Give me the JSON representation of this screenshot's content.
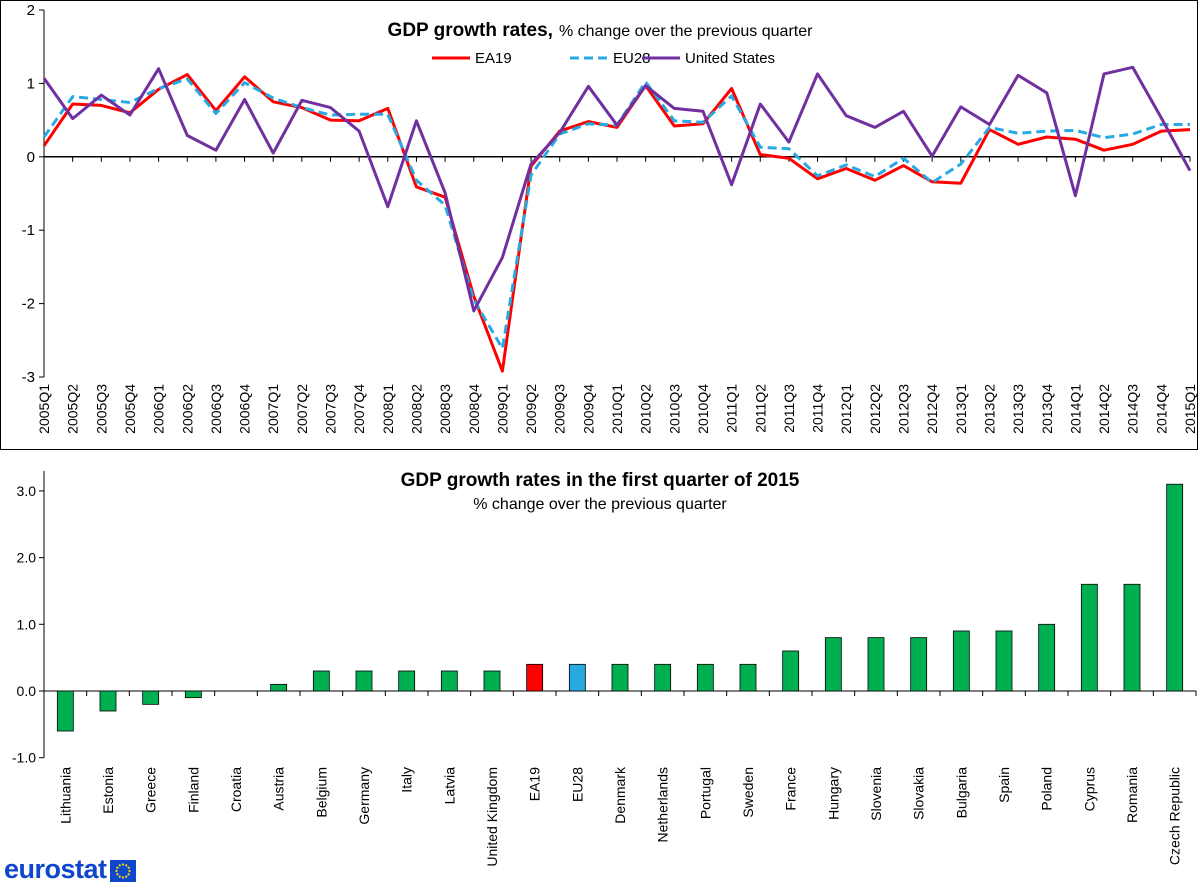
{
  "brand": {
    "name": "eurostat",
    "flag_color": "#0E47CB",
    "star_color": "#FFDD00"
  },
  "chart_data": [
    {
      "type": "line",
      "title": "GDP growth rates,",
      "subtitle": "% change over the previous quarter",
      "xlabel": "",
      "ylabel": "",
      "ylim": [
        -3,
        2
      ],
      "yticks": [
        "2",
        "1",
        "0",
        "-1",
        "-2",
        "-3"
      ],
      "grid": false,
      "legend_position": "top",
      "x": [
        "2005Q1",
        "2005Q2",
        "2005Q3",
        "2005Q4",
        "2006Q1",
        "2006Q2",
        "2006Q3",
        "2006Q4",
        "2007Q1",
        "2007Q2",
        "2007Q3",
        "2007Q4",
        "2008Q1",
        "2008Q2",
        "2008Q3",
        "2008Q4",
        "2009Q1",
        "2009Q2",
        "2009Q3",
        "2009Q4",
        "2010Q1",
        "2010Q2",
        "2010Q3",
        "2010Q4",
        "2011Q1",
        "2011Q2",
        "2011Q3",
        "2011Q4",
        "2012Q1",
        "2012Q2",
        "2012Q3",
        "2012Q4",
        "2013Q1",
        "2013Q2",
        "2013Q3",
        "2013Q4",
        "2014Q1",
        "2014Q2",
        "2014Q3",
        "2014Q4",
        "2015Q1"
      ],
      "series": [
        {
          "name": "EA19",
          "color": "#FF0000",
          "style": "solid",
          "values": [
            0.15,
            0.72,
            0.7,
            0.6,
            0.92,
            1.12,
            0.63,
            1.09,
            0.75,
            0.67,
            0.5,
            0.49,
            0.66,
            -0.41,
            -0.55,
            -1.9,
            -2.92,
            -0.13,
            0.35,
            0.48,
            0.4,
            0.97,
            0.42,
            0.45,
            0.93,
            0.03,
            -0.02,
            -0.3,
            -0.16,
            -0.32,
            -0.12,
            -0.34,
            -0.36,
            0.37,
            0.17,
            0.27,
            0.24,
            0.09,
            0.17,
            0.35,
            0.37
          ]
        },
        {
          "name": "EU28",
          "color": "#27AAE1",
          "style": "dashed",
          "values": [
            0.27,
            0.82,
            0.78,
            0.74,
            0.93,
            1.06,
            0.59,
            1.01,
            0.8,
            0.67,
            0.57,
            0.58,
            0.58,
            -0.32,
            -0.66,
            -1.95,
            -2.61,
            -0.25,
            0.31,
            0.45,
            0.43,
            1.02,
            0.49,
            0.47,
            0.83,
            0.13,
            0.11,
            -0.26,
            -0.11,
            -0.27,
            -0.02,
            -0.35,
            -0.1,
            0.4,
            0.32,
            0.35,
            0.36,
            0.26,
            0.31,
            0.44,
            0.44
          ]
        },
        {
          "name": "United States",
          "color": "#7030A0",
          "style": "solid",
          "values": [
            1.07,
            0.52,
            0.84,
            0.57,
            1.2,
            0.29,
            0.09,
            0.78,
            0.05,
            0.77,
            0.67,
            0.35,
            -0.68,
            0.49,
            -0.49,
            -2.1,
            -1.37,
            -0.1,
            0.33,
            0.96,
            0.43,
            0.97,
            0.66,
            0.62,
            -0.38,
            0.72,
            0.2,
            1.13,
            0.56,
            0.4,
            0.62,
            0.01,
            0.68,
            0.44,
            1.11,
            0.87,
            -0.53,
            1.13,
            1.22,
            0.53,
            -0.19
          ]
        }
      ]
    },
    {
      "type": "bar",
      "title": "GDP growth rates in the first quarter of 2015",
      "subtitle": "% change over the previous quarter",
      "xlabel": "",
      "ylabel": "",
      "ylim": [
        -1,
        3.3
      ],
      "yticks": [
        "3.0",
        "2.0",
        "1.0",
        "0.0",
        "-1.0"
      ],
      "grid": false,
      "bar_colors": {
        "default": "#00B050",
        "EA19": "#FF0000",
        "EU28": "#27AAE1"
      },
      "categories": [
        "Lithuania",
        "Estonia",
        "Greece",
        "Finland",
        "Croatia",
        "Austria",
        "Belgium",
        "Germany",
        "Italy",
        "Latvia",
        "United Kingdom",
        "EA19",
        "EU28",
        "Denmark",
        "Netherlands",
        "Portugal",
        "Sweden",
        "France",
        "Hungary",
        "Slovenia",
        "Slovakia",
        "Bulgaria",
        "Spain",
        "Poland",
        "Cyprus",
        "Romania",
        "Czech Republic"
      ],
      "values": [
        -0.6,
        -0.3,
        -0.2,
        -0.1,
        0.0,
        0.1,
        0.3,
        0.3,
        0.3,
        0.3,
        0.3,
        0.4,
        0.4,
        0.4,
        0.4,
        0.4,
        0.4,
        0.6,
        0.8,
        0.8,
        0.8,
        0.9,
        0.9,
        1.0,
        1.6,
        1.6,
        3.1
      ]
    }
  ]
}
